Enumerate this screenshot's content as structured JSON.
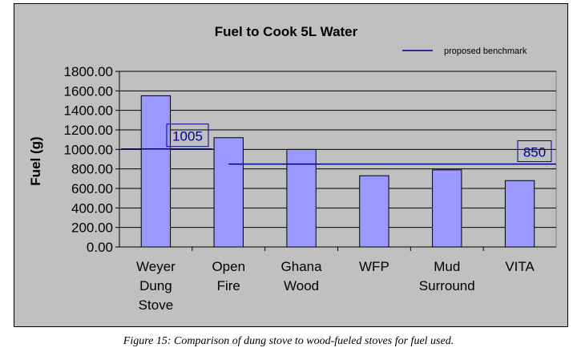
{
  "caption": "Figure 15: Comparison of dung stove to wood-fueled stoves for fuel used.",
  "chart_data": {
    "type": "bar",
    "title": "Fuel to Cook 5L Water",
    "xlabel": "",
    "ylabel": "Fuel (g)",
    "categories": [
      [
        "Weyer",
        "Dung",
        "Stove"
      ],
      [
        "Open",
        "Fire"
      ],
      [
        "Ghana",
        "Wood"
      ],
      [
        "WFP"
      ],
      [
        "Mud",
        "Surround"
      ],
      [
        "VITA"
      ]
    ],
    "values": [
      1550,
      1120,
      1000,
      730,
      790,
      680
    ],
    "ylim": [
      0,
      1800
    ],
    "yticks": [
      "0.00",
      "200.00",
      "400.00",
      "600.00",
      "800.00",
      "1000.00",
      "1200.00",
      "1400.00",
      "1600.00",
      "1800.00"
    ],
    "grid": true,
    "bar_color": "#9999ff",
    "plot_bg": "#c0c0c0",
    "benchmark": {
      "name": "proposed benchmark",
      "color": "#00008b",
      "segments": [
        {
          "from_category": 0,
          "to_category": 1,
          "value": 1005
        },
        {
          "from_category": 1,
          "to_category": 5,
          "value": 850
        }
      ],
      "labels": [
        "1005",
        "850"
      ]
    },
    "legend": {
      "position": "top-right",
      "entry": "proposed benchmark"
    }
  }
}
